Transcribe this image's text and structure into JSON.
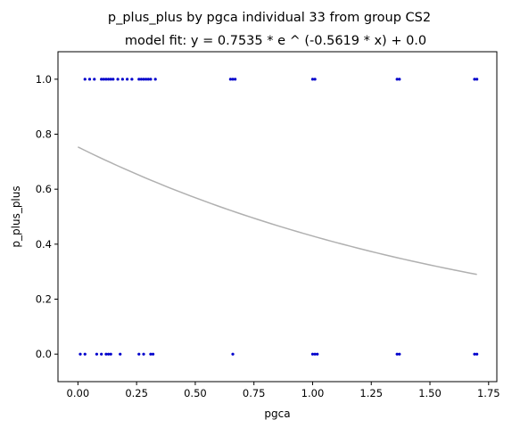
{
  "chart_data": {
    "type": "scatter",
    "title": "p_plus_plus by pgca individual 33 from group CS2",
    "subtitle": "model fit: y = 0.7535 * e ^ (-0.5619 * x) + 0.0",
    "xlabel": "pgca",
    "ylabel": "p_plus_plus",
    "xlim": [
      -0.085,
      1.785
    ],
    "ylim": [
      -0.1,
      1.1
    ],
    "x_ticks": [
      "0.00",
      "0.25",
      "0.50",
      "0.75",
      "1.00",
      "1.25",
      "1.50",
      "1.75"
    ],
    "y_ticks": [
      "0.0",
      "0.2",
      "0.4",
      "0.6",
      "0.8",
      "1.0"
    ],
    "grid": false,
    "point_color": "#0000cc",
    "fit_color": "#b0b0b0",
    "fit": {
      "a": 0.7535,
      "b": -0.5619,
      "c": 0.0,
      "x_range": [
        0.0,
        1.7
      ]
    },
    "points_y1": [
      0.03,
      0.05,
      0.07,
      0.1,
      0.11,
      0.12,
      0.13,
      0.14,
      0.15,
      0.17,
      0.19,
      0.21,
      0.23,
      0.26,
      0.27,
      0.28,
      0.29,
      0.3,
      0.31,
      0.33,
      0.65,
      0.66,
      0.67,
      1.0,
      1.01,
      1.36,
      1.37,
      1.69,
      1.7
    ],
    "points_y0": [
      0.01,
      0.03,
      0.08,
      0.1,
      0.12,
      0.13,
      0.14,
      0.18,
      0.26,
      0.28,
      0.31,
      0.32,
      0.66,
      1.0,
      1.01,
      1.02,
      1.36,
      1.37,
      1.69,
      1.7
    ]
  }
}
